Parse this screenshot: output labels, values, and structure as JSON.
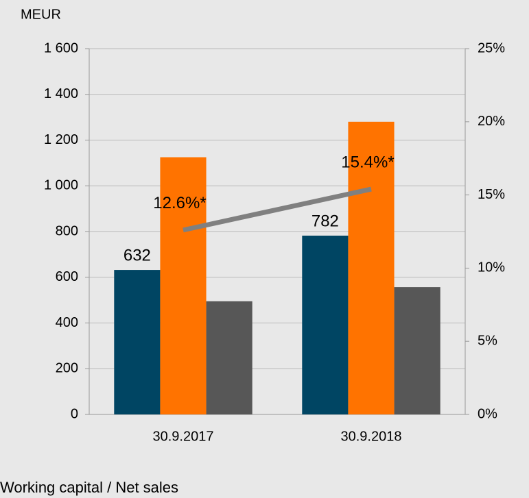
{
  "chart_data": {
    "type": "bar",
    "ylabel": "MEUR",
    "categories": [
      "30.9.2017",
      "30.9.2018"
    ],
    "series": [
      {
        "color": "#004563",
        "values": [
          632,
          782
        ],
        "show_labels": true
      },
      {
        "color": "#ff7300",
        "values": [
          1125,
          1280
        ]
      },
      {
        "color": "#575757",
        "values": [
          495,
          557
        ]
      },
      {
        "name": "Working capital / Net sales",
        "type": "line",
        "axis": "y2",
        "color": "#808080",
        "values": [
          12.6,
          15.4
        ],
        "value_labels": [
          "12.6%*",
          "15.4%*"
        ]
      }
    ],
    "ylim": [
      0,
      1600
    ],
    "yticks": [
      0,
      200,
      400,
      600,
      800,
      {
        "value": 1000,
        "label": "1 000"
      },
      {
        "value": 1200,
        "label": "1 200"
      },
      {
        "value": 1400,
        "label": "1 400"
      },
      {
        "value": 1600,
        "label": "1 600"
      }
    ],
    "y2lim": [
      0,
      25
    ],
    "y2ticks": [
      {
        "value": 0,
        "label": "0%"
      },
      {
        "value": 5,
        "label": "5%"
      },
      {
        "value": 10,
        "label": "10%"
      },
      {
        "value": 15,
        "label": "15%"
      },
      {
        "value": 20,
        "label": "20%"
      },
      {
        "value": 25,
        "label": "25%"
      }
    ],
    "grid": true
  }
}
